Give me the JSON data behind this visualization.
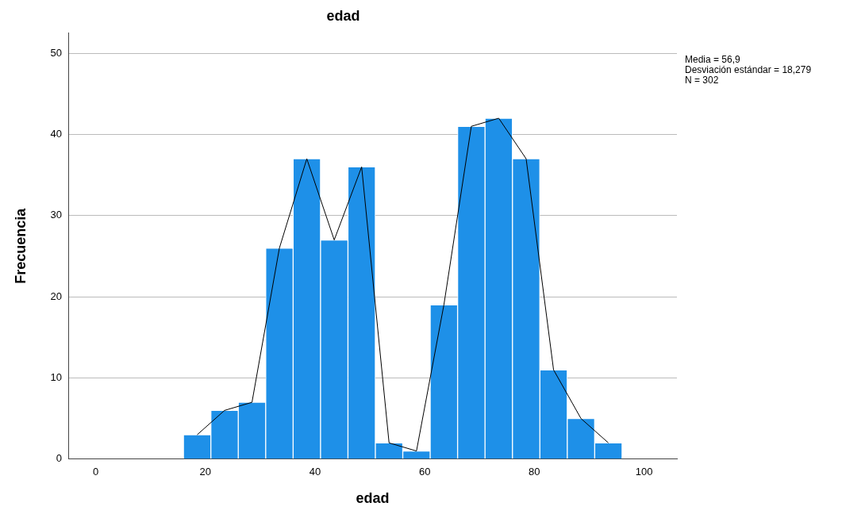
{
  "chart_data": {
    "type": "histogram",
    "title": "edad",
    "xlabel": "edad",
    "ylabel": "Frecuencia",
    "bins": [
      16,
      21,
      26,
      31,
      36,
      41,
      46,
      51,
      56,
      61,
      66,
      71,
      76,
      81,
      86,
      91,
      96
    ],
    "values": [
      3,
      6,
      7,
      26,
      37,
      27,
      36,
      2,
      1,
      19,
      41,
      42,
      37,
      11,
      5,
      2
    ],
    "color": "#1e90e8",
    "series": [
      {
        "type": "line",
        "color": "#000000",
        "x": [
          18.5,
          23.5,
          28.5,
          33.5,
          38.5,
          43.5,
          48.5,
          53.5,
          58.5,
          63.5,
          68.5,
          73.5,
          78.5,
          83.5,
          88.5,
          93.5
        ],
        "values": [
          3,
          6,
          7,
          26,
          37,
          27,
          36,
          2,
          1,
          19,
          41,
          42,
          37,
          11,
          5,
          2
        ]
      }
    ],
    "marker": "none",
    "xlim": [
      -5,
      106
    ],
    "xticks": [
      0,
      20,
      40,
      60,
      80,
      100
    ],
    "ylim": [
      0,
      52.5
    ],
    "yticks": [
      0,
      10,
      20,
      30,
      40,
      50
    ],
    "grid": "y",
    "legend": false,
    "annotations": [
      "Media = 56,9",
      "Desviación estándar = 18,279",
      "N = 302"
    ]
  }
}
